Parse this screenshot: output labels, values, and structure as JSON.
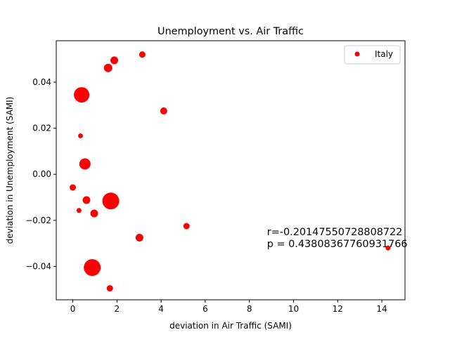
{
  "chart_data": {
    "type": "scatter",
    "title": "Unemployment vs. Air Traffic",
    "xlabel": "deviation in Air Traffic (SAMI)",
    "ylabel": "deviation in Unemployment (SAMI)",
    "xlim": [
      -0.75,
      15.05
    ],
    "ylim": [
      -0.0545,
      0.058
    ],
    "xticks": [
      0,
      2,
      4,
      6,
      8,
      10,
      12,
      14
    ],
    "yticks": [
      -0.04,
      -0.02,
      0.0,
      0.02,
      0.04
    ],
    "xtick_labels": [
      "0",
      "2",
      "4",
      "6",
      "8",
      "10",
      "12",
      "14"
    ],
    "ytick_labels": [
      "−0.04",
      "−0.02",
      "0.00",
      "0.02",
      "0.04"
    ],
    "grid": false,
    "legend_placement": "top-right",
    "series": [
      {
        "name": "Italy",
        "color": "#ff0000",
        "points": [
          {
            "x": 3.15,
            "y": 0.052,
            "s": 4.5
          },
          {
            "x": 1.88,
            "y": 0.0495,
            "s": 5.5
          },
          {
            "x": 1.6,
            "y": 0.0462,
            "s": 6.0
          },
          {
            "x": 0.4,
            "y": 0.0345,
            "s": 11.0
          },
          {
            "x": 4.12,
            "y": 0.0275,
            "s": 5.0
          },
          {
            "x": 0.35,
            "y": 0.0167,
            "s": 3.5
          },
          {
            "x": 0.55,
            "y": 0.0045,
            "s": 8.0
          },
          {
            "x": 0.0,
            "y": -0.0057,
            "s": 4.5
          },
          {
            "x": 0.62,
            "y": -0.0112,
            "s": 5.5
          },
          {
            "x": 1.72,
            "y": -0.0116,
            "s": 12.0
          },
          {
            "x": 0.28,
            "y": -0.0157,
            "s": 3.5
          },
          {
            "x": 0.97,
            "y": -0.017,
            "s": 5.5
          },
          {
            "x": 5.15,
            "y": -0.0225,
            "s": 4.5
          },
          {
            "x": 3.02,
            "y": -0.0275,
            "s": 5.5
          },
          {
            "x": 14.28,
            "y": -0.032,
            "s": 3.5
          },
          {
            "x": 0.88,
            "y": -0.0405,
            "s": 12.0
          },
          {
            "x": 1.68,
            "y": -0.0495,
            "s": 4.5
          }
        ]
      }
    ],
    "annotations": [
      {
        "text": "r=-0.20147550728808722",
        "x": 8.8,
        "y": -0.0265
      },
      {
        "text": "p = 0.43808367760931766",
        "x": 8.8,
        "y": -0.0317
      }
    ]
  }
}
